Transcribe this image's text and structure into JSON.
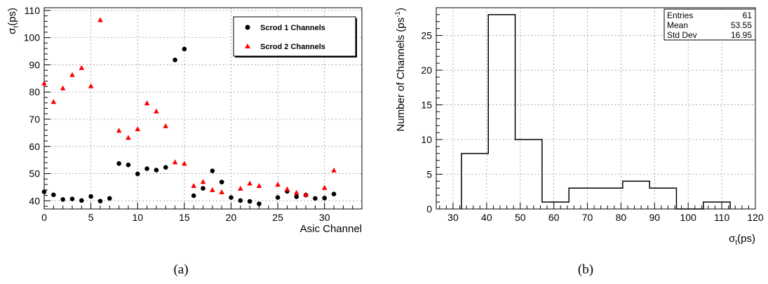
{
  "chart_data": [
    {
      "type": "scatter",
      "panel_label": "(a)",
      "xlabel": "Asic Channel",
      "ylabel_main": "σ",
      "ylabel_sub": "t",
      "ylabel_rest": "(ps)",
      "xlim": [
        0,
        34
      ],
      "ylim": [
        37,
        111
      ],
      "xticks": [
        0,
        5,
        10,
        15,
        20,
        25,
        30
      ],
      "yticks": [
        40,
        50,
        60,
        70,
        80,
        90,
        100,
        110
      ],
      "grid": true,
      "legend_position": "top-right",
      "series": [
        {
          "name": "Scrod 1 Channels",
          "marker": "circle",
          "color": "#000000",
          "x": [
            0,
            1,
            2,
            3,
            4,
            5,
            6,
            7,
            8,
            9,
            10,
            11,
            12,
            13,
            14,
            15,
            16,
            17,
            18,
            19,
            20,
            21,
            22,
            23,
            25,
            26,
            27,
            28,
            29,
            30,
            31
          ],
          "y": [
            43.3,
            42.2,
            40.5,
            40.7,
            40.1,
            41.6,
            39.9,
            40.9,
            53.7,
            53.2,
            49.9,
            51.8,
            51.3,
            52.3,
            91.8,
            95.8,
            41.9,
            44.6,
            51.0,
            46.9,
            41.2,
            40.1,
            39.8,
            38.9,
            41.2,
            43.5,
            41.5,
            42.1,
            40.9,
            41.0,
            42.5
          ]
        },
        {
          "name": "Scrod 2 Channels",
          "marker": "triangle",
          "color": "#ff0000",
          "x": [
            0,
            1,
            2,
            3,
            4,
            5,
            6,
            8,
            9,
            10,
            11,
            12,
            13,
            14,
            15,
            16,
            17,
            18,
            19,
            21,
            22,
            23,
            25,
            26,
            27,
            28,
            30,
            31
          ],
          "y": [
            83.2,
            76.4,
            81.4,
            86.3,
            88.9,
            82.2,
            106.5,
            65.8,
            63.2,
            66.4,
            75.9,
            72.9,
            67.5,
            54.2,
            53.7,
            45.5,
            47.0,
            44.0,
            43.2,
            44.5,
            46.4,
            45.5,
            46.0,
            44.3,
            43.0,
            42.3,
            44.8,
            51.2
          ]
        }
      ]
    },
    {
      "type": "histogram",
      "panel_label": "(b)",
      "xlabel_main": "σ",
      "xlabel_sub": "t",
      "xlabel_rest": "(ps)",
      "ylabel": "Number of Channels (ps",
      "ylabel_sup": "-1",
      "ylabel_end": ")",
      "xlim": [
        25,
        120
      ],
      "ylim": [
        0,
        29
      ],
      "xticks": [
        30,
        40,
        50,
        60,
        70,
        80,
        90,
        100,
        110,
        120
      ],
      "yticks": [
        0,
        5,
        10,
        15,
        20,
        25
      ],
      "grid": true,
      "bin_edges": [
        32.5,
        40.5,
        48.5,
        56.5,
        64.5,
        72.5,
        80.5,
        88.5,
        96.5,
        104.5,
        112.5
      ],
      "counts": [
        8,
        28,
        10,
        1,
        3,
        3,
        4,
        3,
        0,
        1
      ],
      "stats": {
        "entries_label": "Entries",
        "entries": "61",
        "mean_label": "Mean",
        "mean": "53.55",
        "std_label": "Std Dev",
        "std": "16.95"
      }
    }
  ]
}
